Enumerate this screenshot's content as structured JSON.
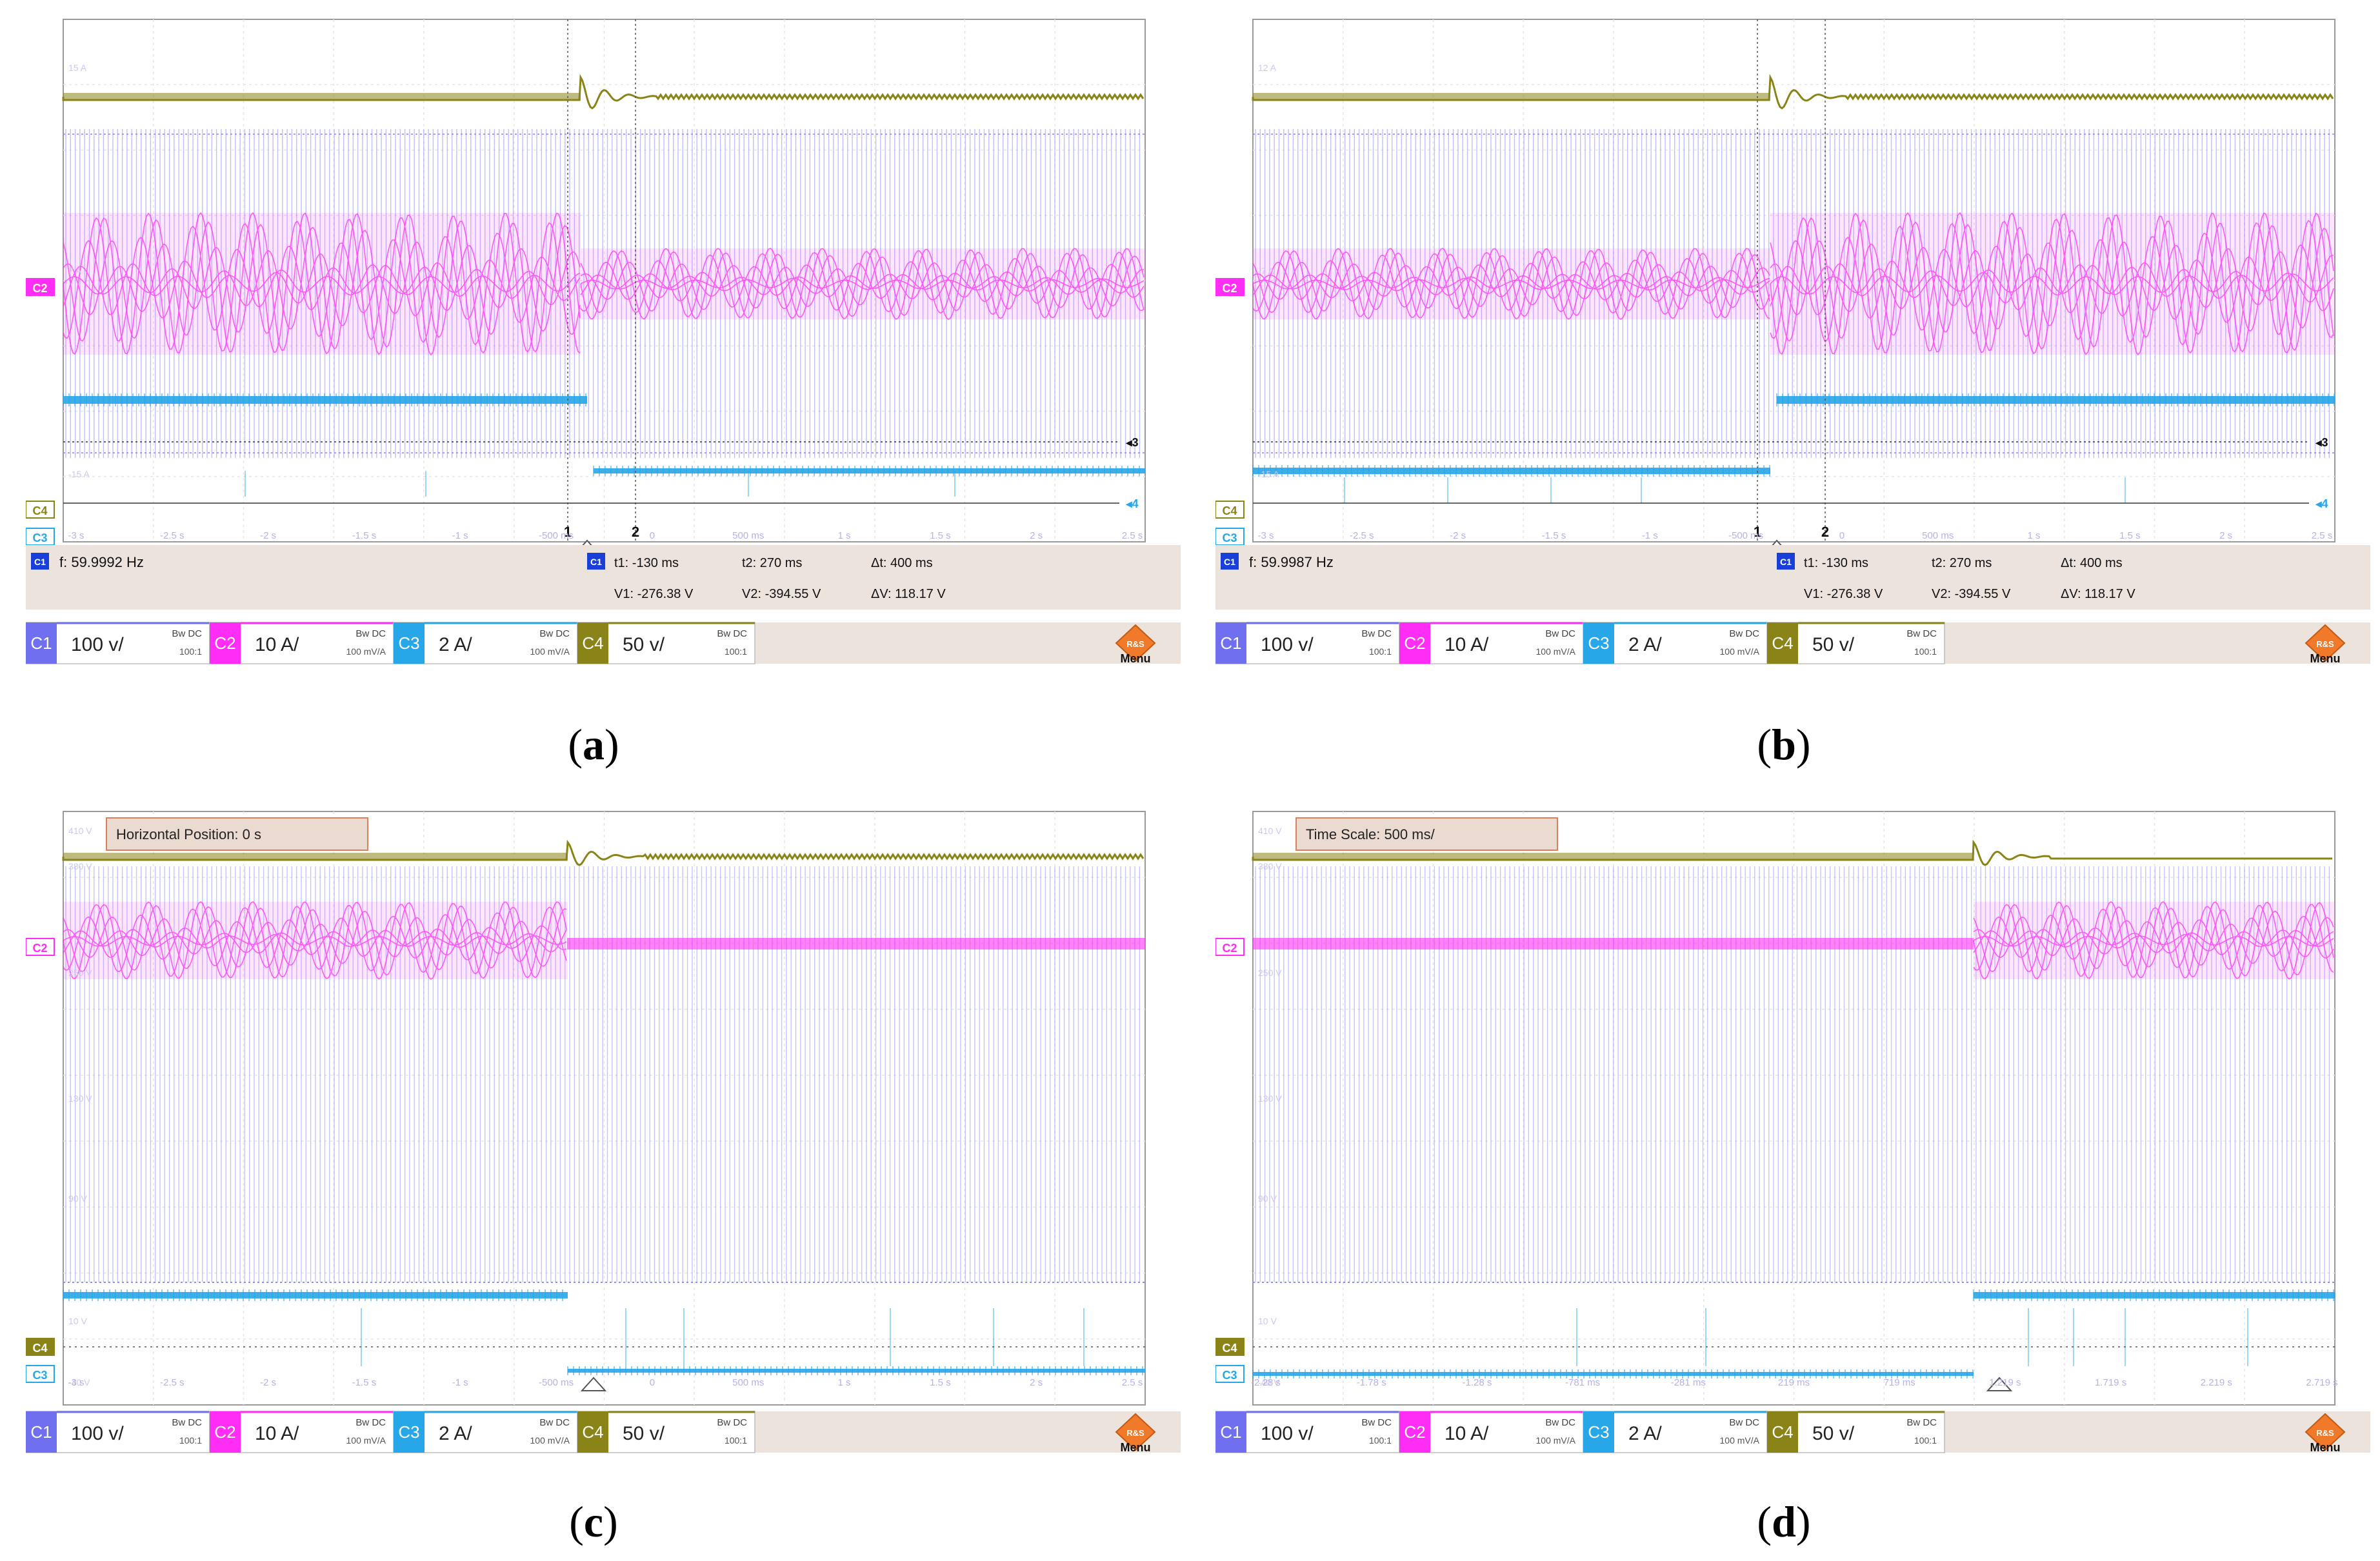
{
  "panels": [
    {
      "id": "a",
      "caption": "a",
      "channels": [
        {
          "tag": "C1",
          "scale": "100 v/",
          "bw": "Bw DC",
          "ratio": "100:1"
        },
        {
          "tag": "C2",
          "scale": "10 A/",
          "bw": "Bw DC",
          "ratio": "100 mV/A"
        },
        {
          "tag": "C3",
          "scale": "2 A/",
          "bw": "Bw DC",
          "ratio": "100 mV/A"
        },
        {
          "tag": "C4",
          "scale": "50 v/",
          "bw": "Bw DC",
          "ratio": "100:1"
        }
      ],
      "freq": "f: 59.9992 Hz",
      "cursor": {
        "t1": "t1: -130 ms",
        "t2": "t2: 270 ms",
        "dt": "Δt: 400 ms",
        "v1": "V1: -276.38 V",
        "v2": "V2: -394.55 V",
        "dv": "ΔV: 118.17 V"
      },
      "cursor_markers": [
        "1",
        "2"
      ],
      "side_markers": [
        "3",
        "4"
      ],
      "menu": "Menu",
      "side_labels": [
        "C2",
        "C4",
        "C3"
      ],
      "ticks": [
        "-3 s",
        "-2.5 s",
        "-2 s",
        "-1.5 s",
        "-1 s",
        "-500 ms",
        "0",
        "500 ms",
        "1 s",
        "1.5 s",
        "2 s",
        "2.5 s"
      ],
      "level_labels": [
        "15 A",
        "7 A",
        "-15 A"
      ]
    },
    {
      "id": "b",
      "caption": "b",
      "channels": [
        {
          "tag": "C1",
          "scale": "100 v/",
          "bw": "Bw DC",
          "ratio": "100:1"
        },
        {
          "tag": "C2",
          "scale": "10 A/",
          "bw": "Bw DC",
          "ratio": "100 mV/A"
        },
        {
          "tag": "C3",
          "scale": "2 A/",
          "bw": "Bw DC",
          "ratio": "100 mV/A"
        },
        {
          "tag": "C4",
          "scale": "50 v/",
          "bw": "Bw DC",
          "ratio": "100:1"
        }
      ],
      "freq": "f: 59.9987 Hz",
      "cursor": {
        "t1": "t1: -130 ms",
        "t2": "t2: 270 ms",
        "dt": "Δt: 400 ms",
        "v1": "V1: -276.38 V",
        "v2": "V2: -394.55 V",
        "dv": "ΔV: 118.17 V"
      },
      "cursor_markers": [
        "1",
        "2"
      ],
      "side_markers": [
        "3",
        "4"
      ],
      "menu": "Menu",
      "side_labels": [
        "C2",
        "C4",
        "C3"
      ],
      "ticks": [
        "-3 s",
        "-2.5 s",
        "-2 s",
        "-1.5 s",
        "-1 s",
        "-500 ms",
        "0",
        "500 ms",
        "1 s",
        "1.5 s",
        "2 s",
        "2.5 s"
      ],
      "level_labels": [
        "12 A",
        "-7 A",
        "-15 A"
      ]
    },
    {
      "id": "c",
      "caption": "c",
      "channels": [
        {
          "tag": "C1",
          "scale": "100 v/",
          "bw": "Bw DC",
          "ratio": "100:1"
        },
        {
          "tag": "C2",
          "scale": "10 A/",
          "bw": "Bw DC",
          "ratio": "100 mV/A"
        },
        {
          "tag": "C3",
          "scale": "2 A/",
          "bw": "Bw DC",
          "ratio": "100 mV/A"
        },
        {
          "tag": "C4",
          "scale": "50 v/",
          "bw": "Bw DC",
          "ratio": "100:1"
        }
      ],
      "info_box": "Horizontal Position: 0 s",
      "menu": "Menu",
      "side_labels": [
        "C2",
        "C4",
        "C3"
      ],
      "ticks": [
        "-3 s",
        "-2.5 s",
        "-2 s",
        "-1.5 s",
        "-1 s",
        "-500 ms",
        "0",
        "500 ms",
        "1 s",
        "1.5 s",
        "2 s",
        "2.5 s"
      ],
      "level_labels": [
        "410 V",
        "380 V",
        "250 V",
        "130 V",
        "90 V",
        "10 V",
        "-40 V"
      ]
    },
    {
      "id": "d",
      "caption": "d",
      "channels": [
        {
          "tag": "C1",
          "scale": "100 v/",
          "bw": "Bw DC",
          "ratio": "100:1"
        },
        {
          "tag": "C2",
          "scale": "10 A/",
          "bw": "Bw DC",
          "ratio": "100 mV/A"
        },
        {
          "tag": "C3",
          "scale": "2 A/",
          "bw": "Bw DC",
          "ratio": "100 mV/A"
        },
        {
          "tag": "C4",
          "scale": "50 v/",
          "bw": "Bw DC",
          "ratio": "100:1"
        }
      ],
      "info_box": "Time Scale: 500 ms/",
      "menu": "Menu",
      "side_labels": [
        "C2",
        "C4",
        "C3"
      ],
      "ticks": [
        "-2.28 s",
        "-1.78 s",
        "-1.28 s",
        "-781 ms",
        "-281 ms",
        "219 ms",
        "719 ms",
        "1.219 s",
        "1.719 s",
        "2.219 s",
        "2.719 s"
      ],
      "level_labels": [
        "410 V",
        "380 V",
        "250 V",
        "130 V",
        "90 V",
        "10 V",
        "-40 V"
      ]
    }
  ],
  "colors": {
    "c1": "#6f6ff0",
    "c1_trace": "#8c8cf5",
    "c2": "#ff2df5",
    "c3": "#27a6e8",
    "c4": "#8a8418",
    "panel_bg": "#ece3dc",
    "info_bg": "#eadad0",
    "info_border": "#d98060",
    "menu_orange": "#f07a2a"
  }
}
